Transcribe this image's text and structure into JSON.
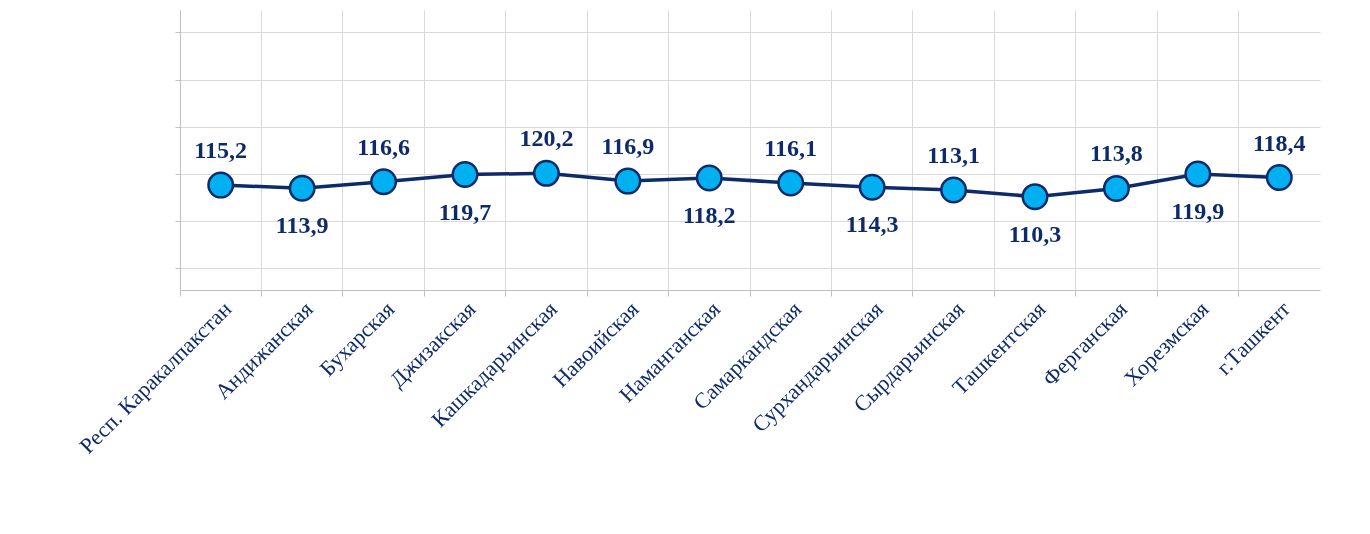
{
  "chart_data": {
    "type": "line",
    "categories": [
      "Респ. Каракалпакстан",
      "Андижанская",
      "Бухарская",
      "Джизакская",
      "Кашкадарьинская",
      "Навоийская",
      "Наманганская",
      "Самаркандская",
      "Сурхандарьинская",
      "Сырдарьинская",
      "Ташкентская",
      "Ферганская",
      "Хорезмская",
      "г.Ташкент"
    ],
    "series": [
      {
        "color": "#00b0f0",
        "values": [
          115.2,
          113.9,
          116.6,
          119.7,
          120.2,
          116.9,
          118.2,
          116.1,
          114.3,
          113.1,
          110.3,
          113.8,
          119.9,
          118.4
        ],
        "value_labels": [
          "115,2",
          "113,9",
          "116,6",
          "119,7",
          "120,2",
          "116,9",
          "118,2",
          "116,1",
          "114,3",
          "113,1",
          "110,3",
          "113,8",
          "119,9",
          "118,4"
        ]
      }
    ],
    "tick_labels": "x",
    "grid": true,
    "marker": "circle",
    "line_style": "solid"
  }
}
